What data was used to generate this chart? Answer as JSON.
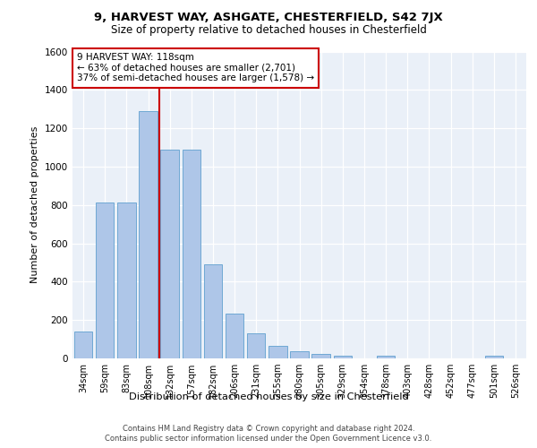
{
  "title1": "9, HARVEST WAY, ASHGATE, CHESTERFIELD, S42 7JX",
  "title2": "Size of property relative to detached houses in Chesterfield",
  "xlabel": "Distribution of detached houses by size in Chesterfield",
  "ylabel": "Number of detached properties",
  "categories": [
    "34sqm",
    "59sqm",
    "83sqm",
    "108sqm",
    "132sqm",
    "157sqm",
    "182sqm",
    "206sqm",
    "231sqm",
    "255sqm",
    "280sqm",
    "305sqm",
    "329sqm",
    "354sqm",
    "378sqm",
    "403sqm",
    "428sqm",
    "452sqm",
    "477sqm",
    "501sqm",
    "526sqm"
  ],
  "values": [
    140,
    815,
    815,
    1290,
    1090,
    1090,
    490,
    235,
    130,
    65,
    38,
    25,
    15,
    0,
    15,
    0,
    0,
    0,
    0,
    15,
    0
  ],
  "bar_color": "#aec6e8",
  "bar_edge_color": "#6fa8d4",
  "property_line_x": 3.5,
  "annotation_text": "9 HARVEST WAY: 118sqm\n← 63% of detached houses are smaller (2,701)\n37% of semi-detached houses are larger (1,578) →",
  "annotation_box_color": "#ffffff",
  "annotation_box_edge_color": "#cc0000",
  "vline_color": "#cc0000",
  "ylim": [
    0,
    1600
  ],
  "yticks": [
    0,
    200,
    400,
    600,
    800,
    1000,
    1200,
    1400,
    1600
  ],
  "background_color": "#eaf0f8",
  "footer_line1": "Contains HM Land Registry data © Crown copyright and database right 2024.",
  "footer_line2": "Contains public sector information licensed under the Open Government Licence v3.0."
}
